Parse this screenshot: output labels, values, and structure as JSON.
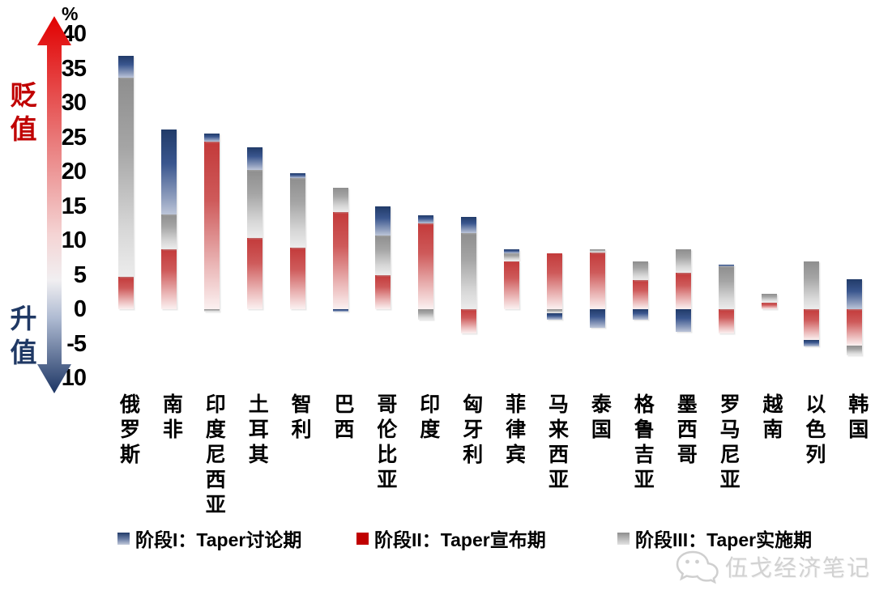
{
  "y_axis": {
    "unit_label": "%",
    "ticks": [
      40,
      35,
      30,
      25,
      20,
      15,
      10,
      5,
      0,
      -5,
      -10
    ],
    "top_label": "贬值",
    "bottom_label": "升值",
    "top_label_color": "#c00000",
    "bottom_label_color": "#1f3864"
  },
  "legend": [
    {
      "label": "阶段I：Taper讨论期",
      "swatch": "blue"
    },
    {
      "label": "阶段II：Taper宣布期",
      "swatch": "red"
    },
    {
      "label": "阶段III：Taper实施期",
      "swatch": "gray"
    }
  ],
  "watermark": {
    "icon": "wechat-icon",
    "text": "伍戈经济笔记"
  },
  "colors": {
    "phase1_blue": "#1F3864",
    "phase2_red": "#C00000",
    "phase3_gray": "#8E8E8E",
    "depreciate_label": "#C00000",
    "appreciate_label": "#1F3864"
  },
  "chart_data": {
    "type": "bar",
    "stacked": true,
    "orientation": "vertical",
    "unit": "%",
    "ylim": [
      -10,
      40
    ],
    "grid": false,
    "legend_position": "bottom",
    "stack_order_note": "segments stack away from zero in order: 阶段II, 阶段III, 阶段I",
    "categories": [
      "俄罗斯",
      "南非",
      "印度尼西亚",
      "土耳其",
      "智利",
      "巴西",
      "哥伦比亚",
      "印度",
      "匈牙利",
      "菲律宾",
      "马来西亚",
      "泰国",
      "格鲁吉亚",
      "墨西哥",
      "罗马尼亚",
      "越南",
      "以色列",
      "韩国"
    ],
    "series": [
      {
        "name": "阶段I：Taper讨论期",
        "color_key": "blue",
        "values": [
          3.2,
          12.3,
          1.1,
          3.3,
          0.7,
          -0.3,
          4.2,
          1.2,
          2.3,
          0.6,
          -0.9,
          -2.7,
          -1.5,
          -3.3,
          0.3,
          0,
          -0.9,
          4.3
        ]
      },
      {
        "name": "阶段II：Taper宣布期",
        "color_key": "red",
        "values": [
          4.7,
          8.7,
          24.4,
          10.4,
          8.9,
          14.1,
          4.9,
          12.5,
          -3.5,
          7.0,
          8.1,
          8.2,
          4.2,
          5.3,
          -3.5,
          1.0,
          -4.5,
          -5.3
        ]
      },
      {
        "name": "阶段III：Taper实施期",
        "color_key": "gray",
        "values": [
          28.9,
          5.1,
          -0.4,
          9.8,
          10.2,
          3.5,
          5.8,
          -1.5,
          11.1,
          1.1,
          -0.6,
          0.5,
          2.8,
          3.4,
          6.2,
          1.2,
          7.0,
          -1.4
        ]
      }
    ]
  }
}
